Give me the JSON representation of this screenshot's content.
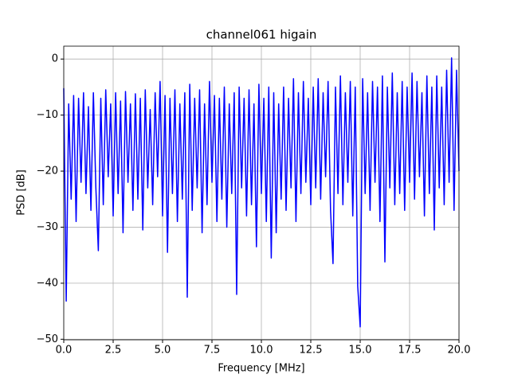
{
  "chart_data": {
    "type": "line",
    "title": "channel061 higain",
    "x_label": "Frequency [MHz]",
    "y_label": "PSD [dB]",
    "xlim": [
      0,
      20
    ],
    "ylim": [
      -50.1,
      2.3
    ],
    "xticks": [
      {
        "value": 0,
        "label": "0.0"
      },
      {
        "value": 2.5,
        "label": "2.5"
      },
      {
        "value": 5,
        "label": "5.0"
      },
      {
        "value": 7.5,
        "label": "7.5"
      },
      {
        "value": 10,
        "label": "10.0"
      },
      {
        "value": 12.5,
        "label": "12.5"
      },
      {
        "value": 15,
        "label": "15.0"
      },
      {
        "value": 17.5,
        "label": "17.5"
      },
      {
        "value": 20,
        "label": "20.0"
      }
    ],
    "yticks": [
      0,
      {
        "value": -10,
        "label": "−10"
      },
      {
        "value": -20,
        "label": "−20"
      },
      {
        "value": -30,
        "label": "−30"
      },
      {
        "value": -40,
        "label": "−40"
      },
      {
        "value": -50,
        "label": "−50"
      }
    ],
    "grid": true,
    "color": "#0000ff",
    "x": [
      0,
      0.125,
      0.25,
      0.375,
      0.5,
      0.625,
      0.75,
      0.875,
      1,
      1.125,
      1.25,
      1.375,
      1.5,
      1.625,
      1.75,
      1.875,
      2,
      2.125,
      2.25,
      2.375,
      2.5,
      2.625,
      2.75,
      2.875,
      3,
      3.125,
      3.25,
      3.375,
      3.5,
      3.625,
      3.75,
      3.875,
      4,
      4.125,
      4.25,
      4.375,
      4.5,
      4.625,
      4.75,
      4.875,
      5,
      5.125,
      5.25,
      5.375,
      5.5,
      5.625,
      5.75,
      5.875,
      6,
      6.125,
      6.25,
      6.375,
      6.5,
      6.625,
      6.75,
      6.875,
      7,
      7.125,
      7.25,
      7.375,
      7.5,
      7.625,
      7.75,
      7.875,
      8,
      8.125,
      8.25,
      8.375,
      8.5,
      8.625,
      8.75,
      8.875,
      9,
      9.125,
      9.25,
      9.375,
      9.5,
      9.625,
      9.75,
      9.875,
      10,
      10.125,
      10.25,
      10.375,
      10.5,
      10.625,
      10.75,
      10.875,
      11,
      11.125,
      11.25,
      11.375,
      11.5,
      11.625,
      11.75,
      11.875,
      12,
      12.125,
      12.25,
      12.375,
      12.5,
      12.625,
      12.75,
      12.875,
      13,
      13.125,
      13.25,
      13.375,
      13.5,
      13.625,
      13.75,
      13.875,
      14,
      14.125,
      14.25,
      14.375,
      14.5,
      14.625,
      14.75,
      14.875,
      15,
      15.125,
      15.25,
      15.375,
      15.5,
      15.625,
      15.75,
      15.875,
      16,
      16.125,
      16.25,
      16.375,
      16.5,
      16.625,
      16.75,
      16.875,
      17,
      17.125,
      17.25,
      17.375,
      17.5,
      17.625,
      17.75,
      17.875,
      18,
      18.125,
      18.25,
      18.375,
      18.5,
      18.625,
      18.75,
      18.875,
      19,
      19.125,
      19.25,
      19.375,
      19.5,
      19.625,
      19.75,
      19.875,
      20
    ],
    "values": [
      -5.2,
      -43.2,
      -8,
      -25,
      -6.5,
      -29,
      -7,
      -22,
      -6,
      -24,
      -8.5,
      -27,
      -6,
      -23,
      -34.2,
      -7,
      -26,
      -5.5,
      -21,
      -8,
      -28,
      -6,
      -24,
      -7.5,
      -31,
      -5.8,
      -22,
      -8,
      -27,
      -6.2,
      -25,
      -7,
      -30.5,
      -5.5,
      -23,
      -9,
      -26,
      -6,
      -21,
      -4,
      -28,
      -6.5,
      -34.5,
      -7,
      -24,
      -5.5,
      -29,
      -8,
      -25,
      -6,
      -42.5,
      -4.5,
      -27,
      -7,
      -23,
      -5.5,
      -31,
      -8,
      -26,
      -4,
      -22,
      -6.5,
      -29,
      -7,
      -25,
      -5,
      -30,
      -8,
      -24,
      -6,
      -42,
      -5,
      -23,
      -7,
      -28,
      -5.5,
      -26,
      -8,
      -33.5,
      -4.5,
      -24,
      -7,
      -29,
      -5,
      -35.5,
      -6,
      -31,
      -8,
      -25,
      -5,
      -27,
      -7,
      -23,
      -3.5,
      -29,
      -6,
      -24,
      -4,
      -22,
      -7,
      -26,
      -5,
      -23,
      -3.5,
      -25,
      -6,
      -21,
      -4,
      -27,
      -36.5,
      -5,
      -24,
      -3,
      -26,
      -6,
      -22,
      -4,
      -28,
      -5,
      -40.5,
      -47.8,
      -3.5,
      -24,
      -6,
      -27,
      -4,
      -22,
      -5,
      -29,
      -3,
      -36.2,
      -5,
      -23,
      -2.5,
      -26,
      -6,
      -24,
      -4,
      -27,
      -5,
      -22,
      -2.5,
      -25,
      -4,
      -21,
      -6,
      -28,
      -3,
      -24,
      -5,
      -30.5,
      -3,
      -23,
      -5,
      -26,
      -2,
      -22,
      0.2,
      -27,
      -2,
      -20
    ]
  }
}
